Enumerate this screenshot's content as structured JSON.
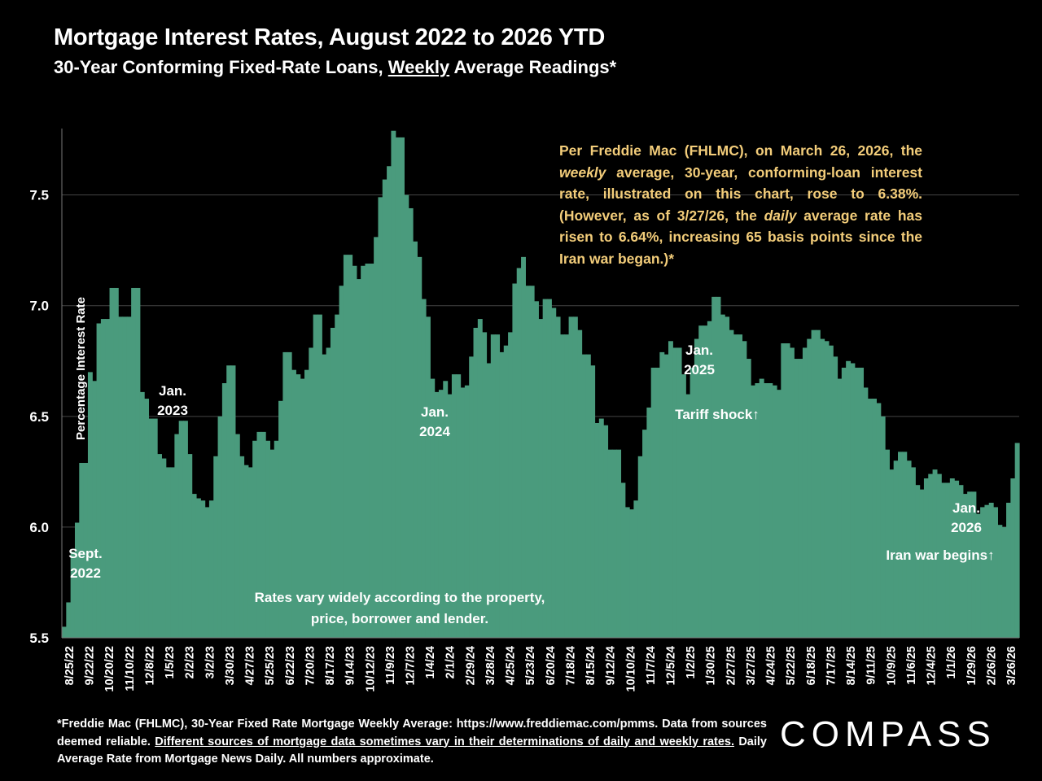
{
  "title": "Mortgage Interest Rates, August 2022 to 2026 YTD",
  "subtitle": {
    "part1": "30-Year Conforming Fixed-Rate Loans, ",
    "underlined": "Weekly",
    "part2": " Average Readings*"
  },
  "note": {
    "l1": "Per Freddie Mac (FHLMC), on March 26, 2026, the ",
    "italic1": "weekly",
    "l2": " average, 30-year, conforming-loan interest rate, illustrated on this chart, rose to 6.38%. (However, as of 3/27/26, the ",
    "italic2": "daily",
    "l3": " average rate has risen to 6.64%, increasing 65 basis points since the Iran war began.)*"
  },
  "footer": {
    "line1": "*Freddie Mac (FHLMC), 30-Year Fixed Rate Mortgage Weekly Average: https://www.freddiemac.com/pmms. Data from sources deemed reliable. ",
    "underlined": "Different sources of mortgage data sometimes vary in their determinations of daily and weekly rates.",
    "line2": " Daily Average Rate from Mortgage News Daily. All numbers approximate."
  },
  "logo": "COMPASS",
  "colors": {
    "background": "#000000",
    "bar": "#4a9b7d",
    "note": "#f3cd7a",
    "text": "#ffffff",
    "grid": "#444444"
  },
  "chart_data": {
    "type": "bar",
    "ylabel": "Percentage Interest  Rate",
    "ylim": [
      5.5,
      7.8
    ],
    "yticks": [
      "5.5",
      "6.0",
      "6.5",
      "7.0",
      "7.5"
    ],
    "grid": true,
    "xtick_labels": [
      "8/25/22",
      "9/22/22",
      "10/20/22",
      "11/10/22",
      "12/8/22",
      "1/5/23",
      "2/2/23",
      "3/2/23",
      "3/30/23",
      "4/27/23",
      "5/25/23",
      "6/22/23",
      "7/20/23",
      "8/17/23",
      "9/14/23",
      "10/12/23",
      "11/9/23",
      "12/7/23",
      "1/4/24",
      "2/1/24",
      "2/29/24",
      "3/28/24",
      "4/25/24",
      "5/23/24",
      "6/20/24",
      "7/18/24",
      "8/15/24",
      "9/12/24",
      "10/10/24",
      "11/7/24",
      "12/5/24",
      "1/2/25",
      "1/30/25",
      "2/27/25",
      "3/27/25",
      "4/24/25",
      "5/22/25",
      "6/18/25",
      "7/17/25",
      "8/14/25",
      "9/11/25",
      "10/9/25",
      "11/6/25",
      "12/4/25",
      "1/1/26",
      "1/29/26",
      "2/26/26",
      "3/26/26"
    ],
    "values": [
      5.55,
      5.66,
      5.89,
      6.02,
      6.29,
      6.29,
      6.7,
      6.66,
      6.92,
      6.94,
      6.94,
      7.08,
      7.08,
      6.95,
      6.95,
      6.95,
      7.08,
      7.08,
      6.61,
      6.58,
      6.49,
      6.49,
      6.33,
      6.31,
      6.27,
      6.27,
      6.42,
      6.48,
      6.48,
      6.33,
      6.15,
      6.13,
      6.12,
      6.09,
      6.12,
      6.32,
      6.5,
      6.65,
      6.73,
      6.73,
      6.42,
      6.32,
      6.28,
      6.27,
      6.39,
      6.43,
      6.43,
      6.39,
      6.35,
      6.39,
      6.57,
      6.79,
      6.79,
      6.71,
      6.69,
      6.67,
      6.71,
      6.81,
      6.96,
      6.96,
      6.78,
      6.81,
      6.9,
      6.96,
      7.09,
      7.23,
      7.23,
      7.18,
      7.12,
      7.18,
      7.19,
      7.19,
      7.31,
      7.49,
      7.57,
      7.63,
      7.79,
      7.76,
      7.76,
      7.5,
      7.44,
      7.29,
      7.22,
      7.03,
      6.95,
      6.67,
      6.61,
      6.62,
      6.66,
      6.6,
      6.69,
      6.69,
      6.63,
      6.64,
      6.77,
      6.9,
      6.94,
      6.88,
      6.74,
      6.87,
      6.87,
      6.79,
      6.82,
      6.88,
      7.1,
      7.17,
      7.22,
      7.09,
      7.09,
      7.02,
      6.94,
      7.03,
      7.03,
      6.99,
      6.95,
      6.87,
      6.87,
      6.95,
      6.95,
      6.89,
      6.78,
      6.78,
      6.73,
      6.47,
      6.49,
      6.46,
      6.35,
      6.35,
      6.35,
      6.2,
      6.09,
      6.08,
      6.12,
      6.32,
      6.44,
      6.54,
      6.72,
      6.72,
      6.79,
      6.78,
      6.84,
      6.81,
      6.81,
      6.69,
      6.6,
      6.72,
      6.85,
      6.91,
      6.91,
      6.93,
      7.04,
      7.04,
      6.96,
      6.95,
      6.89,
      6.87,
      6.87,
      6.84,
      6.76,
      6.64,
      6.65,
      6.67,
      6.65,
      6.65,
      6.64,
      6.62,
      6.83,
      6.83,
      6.81,
      6.76,
      6.76,
      6.81,
      6.85,
      6.89,
      6.89,
      6.85,
      6.84,
      6.82,
      6.77,
      6.67,
      6.72,
      6.75,
      6.74,
      6.72,
      6.72,
      6.63,
      6.58,
      6.58,
      6.56,
      6.5,
      6.35,
      6.26,
      6.3,
      6.34,
      6.34,
      6.3,
      6.27,
      6.19,
      6.17,
      6.22,
      6.24,
      6.26,
      6.24,
      6.2,
      6.2,
      6.22,
      6.21,
      6.19,
      6.15,
      6.16,
      6.16,
      6.06,
      6.09,
      6.1,
      6.11,
      6.09,
      6.01,
      6.0,
      6.11,
      6.22,
      6.38
    ],
    "annotations": {
      "sept2022": [
        "Sept.",
        "2022"
      ],
      "jan2023": [
        "Jan.",
        "2023"
      ],
      "jan2024": [
        "Jan.",
        "2024"
      ],
      "jan2025": [
        "Jan.",
        "2025"
      ],
      "jan2026": [
        "Jan.",
        "2026"
      ],
      "tariff": "Tariff shock↑",
      "iran": "Iran war begins↑",
      "rates_vary": [
        "Rates vary widely according to the property,",
        "price, borrower and lender."
      ]
    }
  }
}
